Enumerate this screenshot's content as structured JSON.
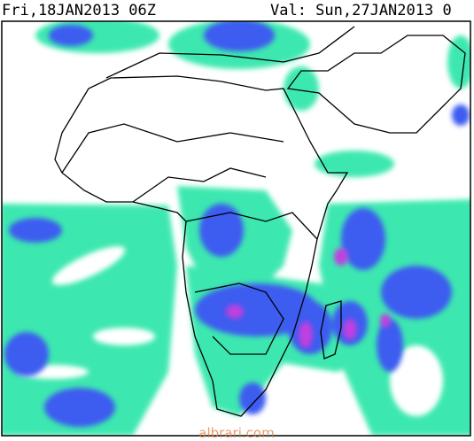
{
  "header": {
    "run": "Fri,18JAN2013 06Z",
    "valid": "Val: Sun,27JAN2013 0"
  },
  "watermark": "albrari.com"
}
